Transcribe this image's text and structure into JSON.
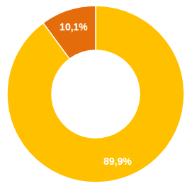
{
  "chart_data": {
    "type": "pie",
    "values": [
      89.9,
      10.1
    ],
    "value_labels": [
      "89,9%",
      "10,1%"
    ],
    "colors": [
      "#FFC000",
      "#E46C0A"
    ],
    "data_labels": true
  }
}
